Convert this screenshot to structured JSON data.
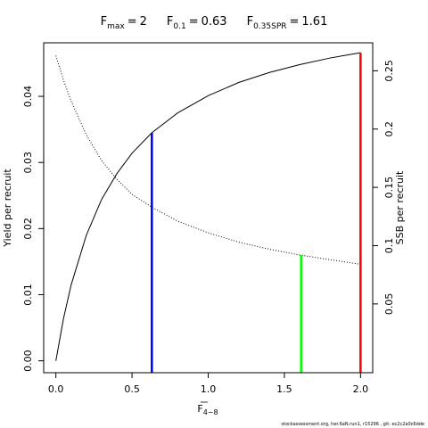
{
  "chart_data": {
    "type": "line",
    "reference_points": [
      {
        "name": "F",
        "subscript": "max",
        "relation": "=",
        "value": 2,
        "curve_value": 0.0466,
        "axis": "y",
        "color": "#ff0000"
      },
      {
        "name": "F",
        "subscript": "0.1",
        "relation": "=",
        "value": 0.63,
        "curve_value": 0.0345,
        "axis": "y",
        "color": "#0000ff"
      },
      {
        "name": "F",
        "subscript": "0.35SPR",
        "relation": "=",
        "value": 1.61,
        "curve_value": 0.092,
        "axis": "y2",
        "color": "#00ff00"
      }
    ],
    "xlabel": {
      "text": "F",
      "subscript": "4−8"
    },
    "ylabel": "Yield per recruit",
    "y2label": "SSB per recruit",
    "footer": "stockassessment.org, her.6aN.run1, r15296 , git: ec2c2a0c6dde",
    "x": [
      0,
      0.05,
      0.1,
      0.2,
      0.3,
      0.4,
      0.5,
      0.63,
      0.8,
      1.0,
      1.2,
      1.4,
      1.6,
      1.8,
      2.0
    ],
    "series": [
      {
        "name": "Yield",
        "color": "#000000",
        "style": "solid",
        "axis": "y",
        "values": [
          0,
          0.00639,
          0.01146,
          0.019,
          0.0244,
          0.0283,
          0.0314,
          0.0345,
          0.0375,
          0.0401,
          0.0421,
          0.0436,
          0.0448,
          0.0458,
          0.0466
        ]
      },
      {
        "name": "SSB",
        "color": "#000000",
        "style": "dotted",
        "axis": "y2",
        "values": [
          0.263,
          0.242,
          0.224,
          0.195,
          0.173,
          0.157,
          0.144,
          0.133,
          0.121,
          0.111,
          0.103,
          0.097,
          0.092,
          0.088,
          0.084
        ]
      }
    ],
    "xlim": [
      -0.08,
      2.08
    ],
    "xticks": [
      {
        "value": 0,
        "label": "0.0"
      },
      0.5,
      {
        "value": 1,
        "label": "1.0"
      },
      1.5,
      {
        "value": 2,
        "label": "2.0"
      }
    ],
    "ylim": [
      -0.0018,
      0.0481
    ],
    "yticks": [
      {
        "value": 0,
        "label": "0.00"
      },
      0.01,
      0.02,
      0.03,
      0.04
    ],
    "y2lim": [
      -0.009,
      0.274
    ],
    "y2ticks": [
      0.05,
      0.1,
      0.15,
      0.2,
      0.25
    ]
  }
}
